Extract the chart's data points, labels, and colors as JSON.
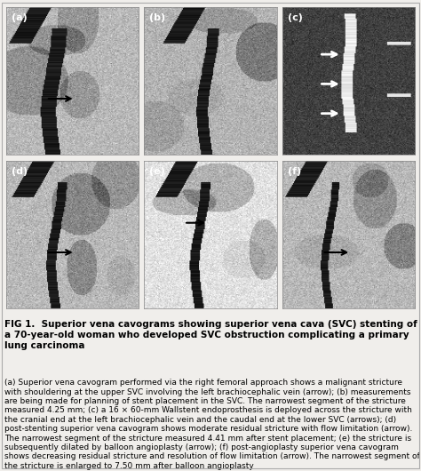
{
  "title_bold": "FIG 1.  Superior vena cavograms showing superior vena cava (SVC) stenting of a 70-year-old woman who developed SVC obstruction complicating a primary lung carcinoma",
  "caption_text": "(a) Superior vena cavogram performed via the right femoral approach shows a malignant stricture with shouldering at the upper SVC involving the left brachiocephalic vein (arrow); (b) measurements are being made for planning of stent placement in the SVC. The narrowest segment of the stricture measured 4.25 mm; (c) a 16 × 60-mm Wallstent endoprosthesis is deployed across the stricture with the cranial end at the left brachiocephalic vein and the caudal end at the lower SVC (arrows); (d) post-stenting superior vena cavogram shows moderate residual stricture with flow limitation (arrow). The narrowest segment of the stricture measured 4.41 mm after stent placement; (e) the stricture is subsequently dilated by balloon angioplasty (arrow); (f) post-angioplasty superior vena cavogram shows decreasing residual stricture and resolution of flow limitation (arrow). The narrowest segment of the stricture is enlarged to 7.50 mm after balloon angioplasty",
  "panel_labels": [
    "(a)",
    "(b)",
    "(c)",
    "(d)",
    "(e)",
    "(f)"
  ],
  "background_color": "#f0eeeb",
  "border_color": "#cccccc",
  "fig_width": 4.74,
  "fig_height": 5.3,
  "panel_bg": "#b0b0b0",
  "title_fontsize": 7.5,
  "caption_fontsize": 6.5,
  "label_fontsize": 8
}
